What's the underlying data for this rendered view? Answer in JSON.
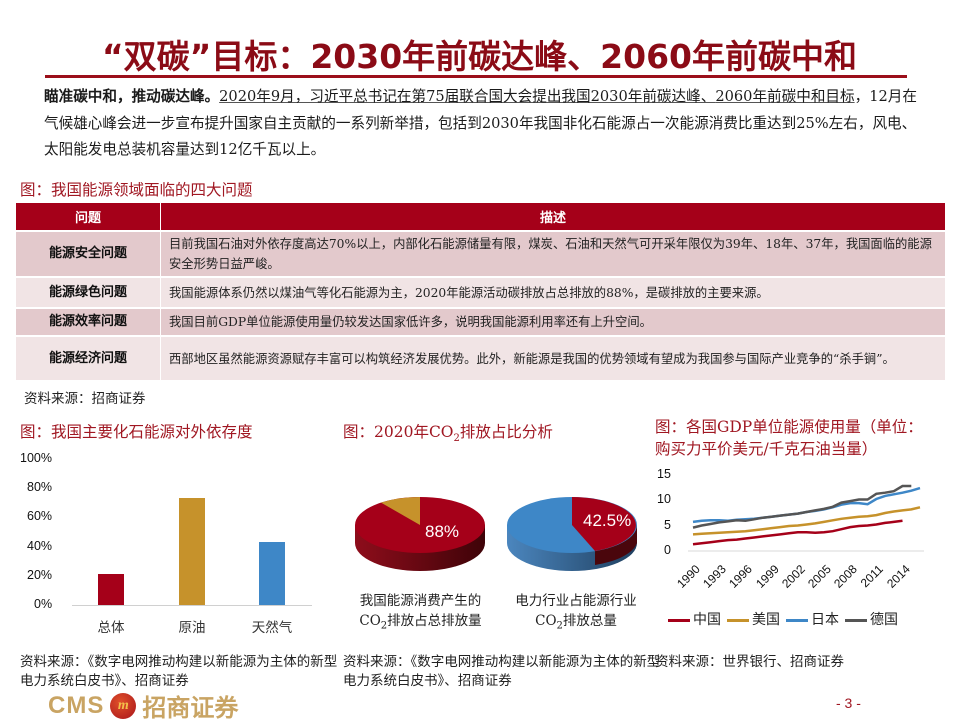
{
  "title": "“双碳”目标：2030年前碳达峰、2060年前碳中和",
  "intro": {
    "lead": "瞄准碳中和，推动碳达峰。",
    "underlined_line1": "2020年9月，习近平总书记在第75届联合国大会提出我国2030年前碳达峰、",
    "underlined_line2": "2060年前碳中和目标",
    "rest": "，12月在气候雄心峰会进一步宣布提升国家自主贡献的一系列新举措，包括到2030年我国非化石能源占一次能源消费比重达到25%左右，风电、太阳能发电总装机容量达到12亿千瓦以上。"
  },
  "table_figure": {
    "caption": "图：我国能源领域面临的四大问题",
    "headers": [
      "问题",
      "描述"
    ],
    "rows": [
      {
        "issue": "能源安全问题",
        "desc": "目前我国石油对外依存度高达70%以上，内部化石能源储量有限，煤炭、石油和天然气可开采年限仅为39年、18年、37年，我国面临的能源安全形势日益严峻。"
      },
      {
        "issue": "能源绿色问题",
        "desc": "我国能源体系仍然以煤油气等化石能源为主，2020年能源活动碳排放占总排放的88%，是碳排放的主要来源。"
      },
      {
        "issue": "能源效率问题",
        "desc": "我国目前GDP单位能源使用量仍较发达国家低许多，说明我国能源利用率还有上升空间。"
      },
      {
        "issue": "能源经济问题",
        "desc": "西部地区虽然能源资源赋存丰富可以构筑经济发展优势。此外，新能源是我国的优势领域有望成为我国参与国际产业竞争的“杀手锏”。"
      }
    ],
    "source": "资料来源：招商证券"
  },
  "colors": {
    "brand_red": "#a50019",
    "title_red": "#8b0b16",
    "gold": "#c6922b",
    "blue": "#3e87c7",
    "grey": "#555555",
    "row_dark": "#e3c9cc",
    "row_light": "#f1e4e5",
    "logo_gold": "#c9a463"
  },
  "chart_data": [
    {
      "type": "bar",
      "title": "图：我国主要化石能源对外依存度",
      "categories": [
        "总体",
        "原油",
        "天然气"
      ],
      "values": [
        21,
        73,
        43
      ],
      "colors": [
        "#a50019",
        "#c6922b",
        "#3e87c7"
      ],
      "ylabel": "",
      "ylim": [
        0,
        100
      ],
      "yticks": [
        "0%",
        "20%",
        "40%",
        "60%",
        "80%",
        "100%"
      ],
      "grid": false,
      "source": "资料来源：《数字电网推动构建以新能源为主体的新型电力系统白皮书》、招商证券"
    },
    {
      "type": "pie",
      "title": "图：2020年CO2排放占比分析",
      "pies": [
        {
          "caption_line1": "我国能源消费产生的",
          "caption_line2": "CO2排放占总排放量",
          "label": "88%",
          "slices": [
            {
              "name": "能源消费",
              "value": 88,
              "color": "#a50019"
            },
            {
              "name": "其他",
              "value": 12,
              "color": "#c6922b"
            }
          ]
        },
        {
          "caption_line1": "电力行业占能源行业",
          "caption_line2": "CO2排放总量",
          "label": "42.5%",
          "slices": [
            {
              "name": "电力行业",
              "value": 42.5,
              "color": "#a50019"
            },
            {
              "name": "其他",
              "value": 57.5,
              "color": "#3e87c7"
            }
          ]
        }
      ],
      "source": "资料来源：《数字电网推动构建以新能源为主体的新型电力系统白皮书》、招商证券"
    },
    {
      "type": "line",
      "title_line1": "图：各国GDP单位能源使用量（单位：",
      "title_line2": "购买力平价美元/千克石油当量）",
      "x": [
        1990,
        1991,
        1992,
        1993,
        1994,
        1995,
        1996,
        1997,
        1998,
        1999,
        2000,
        2001,
        2002,
        2003,
        2004,
        2005,
        2006,
        2007,
        2008,
        2009,
        2010,
        2011,
        2012,
        2013,
        2014,
        2015,
        2016
      ],
      "xticks": [
        "1990",
        "1993",
        "1996",
        "1999",
        "2002",
        "2005",
        "2008",
        "2011",
        "2014"
      ],
      "ylim": [
        0,
        15
      ],
      "yticks": [
        "0",
        "5",
        "10",
        "15"
      ],
      "series": [
        {
          "name": "中国",
          "color": "#a50019",
          "values": [
            1.3,
            1.5,
            1.7,
            1.9,
            2.1,
            2.2,
            2.4,
            2.6,
            2.8,
            3.0,
            3.2,
            3.4,
            3.6,
            3.6,
            3.5,
            3.6,
            3.8,
            4.2,
            4.6,
            4.8,
            4.9,
            5.1,
            5.4,
            5.6,
            5.8,
            null,
            null
          ]
        },
        {
          "name": "美国",
          "color": "#c6922b",
          "values": [
            3.2,
            3.3,
            3.4,
            3.5,
            3.6,
            3.7,
            3.8,
            4.0,
            4.2,
            4.4,
            4.6,
            4.8,
            4.9,
            5.1,
            5.3,
            5.6,
            5.9,
            6.2,
            6.4,
            6.6,
            6.7,
            6.9,
            7.3,
            7.6,
            7.8,
            8.0,
            8.4
          ]
        },
        {
          "name": "日本",
          "color": "#3e87c7",
          "values": [
            5.6,
            5.8,
            5.9,
            5.9,
            5.8,
            6.0,
            6.1,
            6.2,
            6.4,
            6.6,
            6.8,
            7.0,
            7.2,
            7.5,
            7.7,
            8.0,
            8.4,
            8.9,
            9.2,
            9.2,
            9.0,
            10.0,
            10.6,
            10.9,
            11.2,
            11.6,
            12.1
          ]
        },
        {
          "name": "德国",
          "color": "#555555",
          "values": [
            4.5,
            4.9,
            5.2,
            5.5,
            5.7,
            5.9,
            5.8,
            6.1,
            6.4,
            6.6,
            6.8,
            7.0,
            7.2,
            7.5,
            7.8,
            8.1,
            8.5,
            9.3,
            9.6,
            9.9,
            9.9,
            11.0,
            11.2,
            11.5,
            12.5,
            12.5,
            null
          ]
        }
      ],
      "legend_position": "bottom",
      "grid": false,
      "source": "资料来源：世界银行、招商证券"
    }
  ],
  "footer": {
    "logo_cms": "CMS",
    "logo_emblem": "m",
    "logo_name": "招商证券",
    "page_number": "- 3 -"
  }
}
